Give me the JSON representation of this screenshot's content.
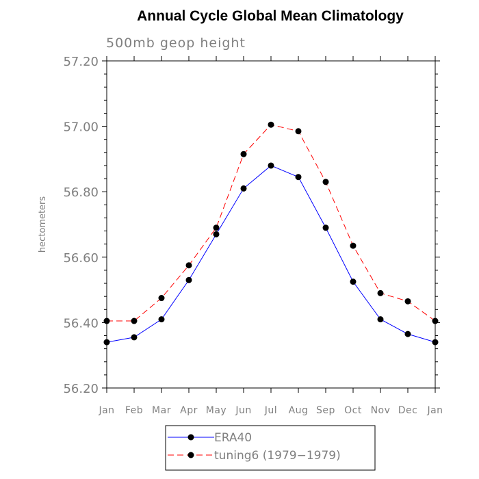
{
  "chart_data": {
    "type": "line",
    "title": "Annual Cycle Global Mean Climatology",
    "subtitle": "500mb geop height",
    "xlabel": "",
    "ylabel": "hectometers",
    "categories": [
      "Jan",
      "Feb",
      "Mar",
      "Apr",
      "May",
      "Jun",
      "Jul",
      "Aug",
      "Sep",
      "Oct",
      "Nov",
      "Dec",
      "Jan"
    ],
    "ylim": [
      56.2,
      57.2
    ],
    "yticks": [
      "56.20",
      "56.40",
      "56.60",
      "56.80",
      "57.00",
      "57.20"
    ],
    "grid": false,
    "legend_position": "bottom",
    "series": [
      {
        "name": "ERA40",
        "color": "#0000ff",
        "line_style": "solid",
        "marker": "circle",
        "values": [
          56.34,
          56.355,
          56.41,
          56.53,
          56.67,
          56.81,
          56.88,
          56.845,
          56.69,
          56.525,
          56.41,
          56.365,
          56.34
        ]
      },
      {
        "name": "tuning6 (1979−1979)",
        "color": "#ff0000",
        "line_style": "dashed",
        "marker": "circle",
        "values": [
          56.405,
          56.405,
          56.475,
          56.575,
          56.69,
          56.915,
          57.005,
          56.985,
          56.83,
          56.635,
          56.49,
          56.465,
          56.405
        ]
      }
    ]
  }
}
